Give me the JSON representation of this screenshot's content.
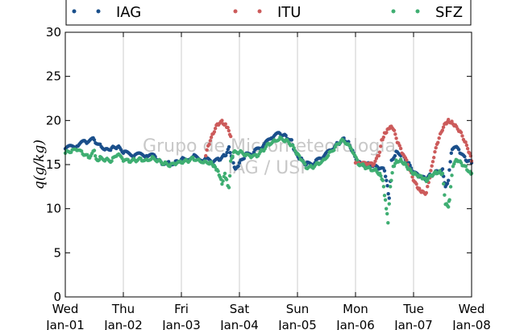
{
  "chart_data": {
    "type": "scatter",
    "title": "",
    "ylabel": "q(g/kg)",
    "xlabel": "",
    "ylim": [
      0,
      30
    ],
    "xlim": [
      0,
      7
    ],
    "y_ticks": [
      0,
      5,
      10,
      15,
      20,
      25,
      30
    ],
    "x_ticks": [
      {
        "value": 0,
        "day": "Wed",
        "date": "Jan-01"
      },
      {
        "value": 1,
        "day": "Thu",
        "date": "Jan-02"
      },
      {
        "value": 2,
        "day": "Fri",
        "date": "Jan-03"
      },
      {
        "value": 3,
        "day": "Sat",
        "date": "Jan-04"
      },
      {
        "value": 4,
        "day": "Sun",
        "date": "Jan-05"
      },
      {
        "value": 5,
        "day": "Mon",
        "date": "Jan-06"
      },
      {
        "value": 6,
        "day": "Tue",
        "date": "Jan-07"
      },
      {
        "value": 7,
        "day": "Wed",
        "date": "Jan-08"
      }
    ],
    "grid": "vertical",
    "legend_position": "top",
    "watermark": [
      "Grupo de Micrometeorologia",
      "IAG / USP"
    ],
    "series": [
      {
        "name": "IAG",
        "color": "#1a4f8b",
        "points": [
          [
            0,
            16.8
          ],
          [
            0.2,
            17.1
          ],
          [
            0.35,
            17.6
          ],
          [
            0.5,
            17.8
          ],
          [
            0.6,
            17.3
          ],
          [
            0.7,
            16.8
          ],
          [
            0.8,
            16.9
          ],
          [
            0.9,
            17.0
          ],
          [
            1.0,
            16.3
          ],
          [
            1.2,
            16.1
          ],
          [
            1.4,
            16.0
          ],
          [
            1.55,
            15.9
          ],
          [
            1.65,
            15.3
          ],
          [
            1.8,
            15.1
          ],
          [
            1.9,
            15.4
          ],
          [
            2.0,
            15.6
          ],
          [
            2.2,
            15.9
          ],
          [
            2.4,
            15.6
          ],
          [
            2.55,
            15.3
          ],
          [
            2.65,
            15.5
          ],
          [
            2.75,
            16.0
          ],
          [
            2.82,
            17.0
          ],
          [
            2.88,
            15.8
          ],
          [
            2.93,
            14.5
          ],
          [
            3.0,
            15.2
          ],
          [
            3.1,
            16.0
          ],
          [
            3.25,
            16.4
          ],
          [
            3.4,
            17.0
          ],
          [
            3.55,
            18.0
          ],
          [
            3.7,
            18.5
          ],
          [
            3.8,
            18.3
          ],
          [
            3.9,
            17.8
          ],
          [
            3.95,
            16.6
          ],
          [
            4.05,
            15.7
          ],
          [
            4.15,
            15.0
          ],
          [
            4.3,
            15.2
          ],
          [
            4.45,
            15.9
          ],
          [
            4.6,
            16.7
          ],
          [
            4.7,
            17.4
          ],
          [
            4.8,
            18.0
          ],
          [
            4.88,
            17.6
          ],
          [
            4.95,
            16.6
          ],
          [
            5.05,
            15.2
          ],
          [
            5.2,
            15.0
          ],
          [
            5.3,
            14.8
          ],
          [
            5.4,
            14.5
          ],
          [
            5.5,
            14.3
          ],
          [
            5.55,
            12.6
          ],
          [
            5.58,
            11.2
          ],
          [
            5.62,
            15.5
          ],
          [
            5.7,
            16.5
          ],
          [
            5.8,
            16.2
          ],
          [
            5.9,
            15.2
          ],
          [
            6.0,
            14.0
          ],
          [
            6.1,
            13.6
          ],
          [
            6.2,
            13.3
          ],
          [
            6.3,
            13.8
          ],
          [
            6.4,
            14.3
          ],
          [
            6.5,
            14.5
          ],
          [
            6.55,
            12.5
          ],
          [
            6.6,
            13.2
          ],
          [
            6.65,
            16.3
          ],
          [
            6.72,
            17.0
          ],
          [
            6.8,
            16.3
          ],
          [
            6.9,
            15.5
          ],
          [
            7.0,
            15.2
          ]
        ]
      },
      {
        "name": "ITU",
        "color": "#cc5b5b",
        "points": [
          [
            2.42,
            16.0
          ],
          [
            2.48,
            17.3
          ],
          [
            2.55,
            18.5
          ],
          [
            2.62,
            19.6
          ],
          [
            2.7,
            20.0
          ],
          [
            2.76,
            19.6
          ],
          [
            2.8,
            19.2
          ],
          [
            2.85,
            18.2
          ],
          [
            5.0,
            15.2
          ],
          [
            5.1,
            15.0
          ],
          [
            5.2,
            15.0
          ],
          [
            5.3,
            14.9
          ],
          [
            5.4,
            16.0
          ],
          [
            5.45,
            17.8
          ],
          [
            5.5,
            18.6
          ],
          [
            5.55,
            19.0
          ],
          [
            5.6,
            19.3
          ],
          [
            5.65,
            19.0
          ],
          [
            5.72,
            17.5
          ],
          [
            5.8,
            16.3
          ],
          [
            5.9,
            15.0
          ],
          [
            5.98,
            13.6
          ],
          [
            6.05,
            12.8
          ],
          [
            6.1,
            12.3
          ],
          [
            6.15,
            12.0
          ],
          [
            6.22,
            11.8
          ],
          [
            6.28,
            13.5
          ],
          [
            6.35,
            15.8
          ],
          [
            6.42,
            17.5
          ],
          [
            6.48,
            18.7
          ],
          [
            6.55,
            19.7
          ],
          [
            6.6,
            20.1
          ],
          [
            6.66,
            19.9
          ],
          [
            6.72,
            19.5
          ],
          [
            6.8,
            18.8
          ],
          [
            6.88,
            17.6
          ],
          [
            6.95,
            16.4
          ],
          [
            7.0,
            15.4
          ]
        ]
      },
      {
        "name": "SFZ",
        "color": "#3fae72",
        "points": [
          [
            0,
            16.3
          ],
          [
            0.1,
            16.4
          ],
          [
            0.2,
            16.6
          ],
          [
            0.3,
            16.2
          ],
          [
            0.4,
            15.8
          ],
          [
            0.5,
            16.6
          ],
          [
            0.55,
            15.5
          ],
          [
            0.6,
            15.9
          ],
          [
            0.7,
            15.6
          ],
          [
            0.8,
            15.4
          ],
          [
            0.9,
            16.1
          ],
          [
            1.0,
            15.4
          ],
          [
            1.1,
            15.3
          ],
          [
            1.2,
            15.5
          ],
          [
            1.3,
            15.7
          ],
          [
            1.4,
            15.6
          ],
          [
            1.5,
            15.9
          ],
          [
            1.6,
            15.5
          ],
          [
            1.7,
            15.1
          ],
          [
            1.8,
            14.8
          ],
          [
            1.9,
            15.0
          ],
          [
            2.0,
            15.2
          ],
          [
            2.1,
            15.4
          ],
          [
            2.2,
            15.8
          ],
          [
            2.3,
            15.6
          ],
          [
            2.4,
            15.4
          ],
          [
            2.5,
            15.3
          ],
          [
            2.55,
            14.8
          ],
          [
            2.6,
            14.4
          ],
          [
            2.65,
            13.8
          ],
          [
            2.7,
            12.8
          ],
          [
            2.75,
            14.0
          ],
          [
            2.78,
            13.3
          ],
          [
            2.82,
            12.4
          ],
          [
            2.85,
            15.4
          ],
          [
            2.9,
            16.4
          ],
          [
            3.0,
            16.4
          ],
          [
            3.1,
            16.0
          ],
          [
            3.2,
            15.8
          ],
          [
            3.3,
            15.9
          ],
          [
            3.4,
            16.6
          ],
          [
            3.5,
            17.4
          ],
          [
            3.6,
            17.8
          ],
          [
            3.7,
            18.1
          ],
          [
            3.8,
            17.8
          ],
          [
            3.9,
            17.2
          ],
          [
            3.98,
            16.2
          ],
          [
            4.05,
            15.6
          ],
          [
            4.15,
            14.6
          ],
          [
            4.25,
            14.7
          ],
          [
            4.35,
            15.2
          ],
          [
            4.45,
            15.6
          ],
          [
            4.55,
            16.4
          ],
          [
            4.65,
            17.0
          ],
          [
            4.75,
            17.7
          ],
          [
            4.85,
            17.3
          ],
          [
            4.95,
            16.4
          ],
          [
            5.05,
            15.0
          ],
          [
            5.15,
            14.8
          ],
          [
            5.25,
            14.6
          ],
          [
            5.35,
            14.5
          ],
          [
            5.42,
            14.0
          ],
          [
            5.47,
            13.2
          ],
          [
            5.5,
            11.5
          ],
          [
            5.53,
            10.0
          ],
          [
            5.56,
            8.4
          ],
          [
            5.6,
            12.5
          ],
          [
            5.65,
            14.8
          ],
          [
            5.7,
            15.5
          ],
          [
            5.78,
            15.6
          ],
          [
            5.85,
            15.2
          ],
          [
            5.92,
            14.5
          ],
          [
            6.0,
            13.9
          ],
          [
            6.08,
            13.6
          ],
          [
            6.15,
            13.4
          ],
          [
            6.22,
            13.1
          ],
          [
            6.3,
            13.8
          ],
          [
            6.38,
            14.2
          ],
          [
            6.45,
            14.3
          ],
          [
            6.5,
            14.0
          ],
          [
            6.55,
            10.5
          ],
          [
            6.6,
            10.2
          ],
          [
            6.62,
            11.0
          ],
          [
            6.68,
            14.8
          ],
          [
            6.75,
            15.5
          ],
          [
            6.82,
            15.2
          ],
          [
            6.9,
            14.8
          ],
          [
            6.98,
            14.2
          ],
          [
            7.0,
            14.0
          ]
        ]
      }
    ]
  }
}
